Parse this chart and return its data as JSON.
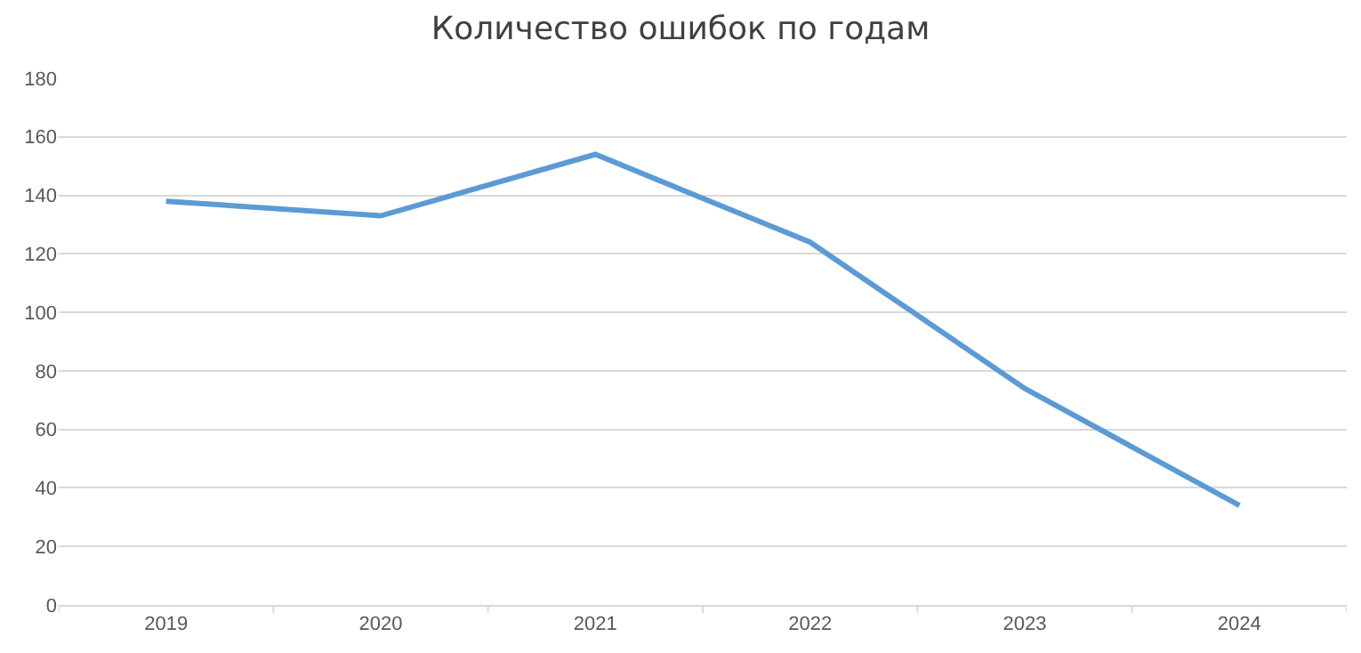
{
  "chart_data": {
    "type": "line",
    "title": "Количество ошибок по годам",
    "categories": [
      "2019",
      "2020",
      "2021",
      "2022",
      "2023",
      "2024"
    ],
    "series": [
      {
        "color": "#5b9bd5",
        "values": [
          138,
          133,
          154,
          124,
          74,
          34
        ]
      }
    ],
    "ylim": [
      0,
      180
    ],
    "yticks": [
      0,
      20,
      40,
      60,
      80,
      100,
      120,
      140,
      160,
      180
    ],
    "grid": "y",
    "legend": false,
    "marker": "none",
    "line_style": "solid"
  }
}
